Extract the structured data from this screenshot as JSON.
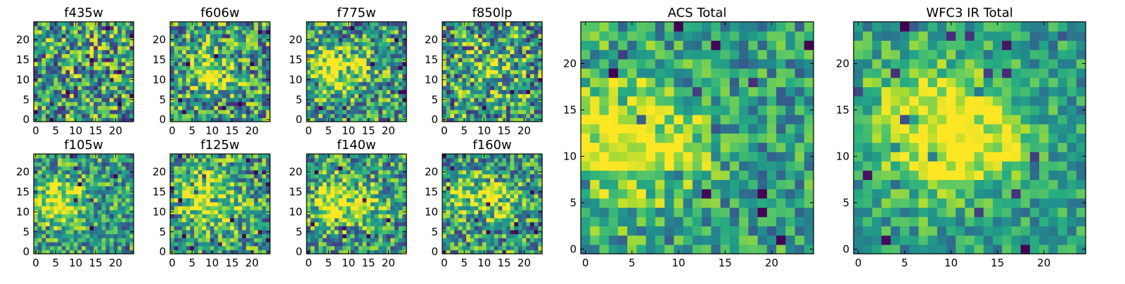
{
  "figure": {
    "colormap": "viridis",
    "colormap_stops": [
      "#440154",
      "#472d7b",
      "#3b528b",
      "#2c728e",
      "#21918c",
      "#28ae80",
      "#5ec962",
      "#addc30",
      "#fde725"
    ]
  },
  "chart_data": [
    {
      "type": "heatmap",
      "title": "f435w",
      "grid_size": [
        25,
        25
      ],
      "x_ticks": [
        0,
        5,
        10,
        15,
        20
      ],
      "y_ticks": [
        0,
        5,
        10,
        15,
        20
      ],
      "xlim": [
        -0.5,
        24.5
      ],
      "ylim": [
        -0.5,
        24.5
      ],
      "values": "25x25 pixel intensities (noisy; no prominent source)"
    },
    {
      "type": "heatmap",
      "title": "f606w",
      "grid_size": [
        25,
        25
      ],
      "x_ticks": [
        0,
        5,
        10,
        15,
        20
      ],
      "y_ticks": [
        0,
        5,
        10,
        15,
        20
      ],
      "xlim": [
        -0.5,
        24.5
      ],
      "ylim": [
        -0.5,
        24.5
      ],
      "values": "25x25 pixel intensities (faint source near x≈9, y≈12)"
    },
    {
      "type": "heatmap",
      "title": "f775w",
      "grid_size": [
        25,
        25
      ],
      "x_ticks": [
        0,
        5,
        10,
        15,
        20
      ],
      "y_ticks": [
        0,
        5,
        10,
        15,
        20
      ],
      "xlim": [
        -0.5,
        24.5
      ],
      "ylim": [
        -0.5,
        24.5
      ],
      "values": "25x25 pixel intensities (source near x≈5, y≈12)"
    },
    {
      "type": "heatmap",
      "title": "f850lp",
      "grid_size": [
        25,
        25
      ],
      "x_ticks": [
        0,
        5,
        10,
        15,
        20
      ],
      "y_ticks": [
        0,
        5,
        10,
        15,
        20
      ],
      "xlim": [
        -0.5,
        24.5
      ],
      "ylim": [
        -0.5,
        24.5
      ],
      "values": "25x25 pixel intensities (noisy)"
    },
    {
      "type": "heatmap",
      "title": "f105w",
      "grid_size": [
        25,
        25
      ],
      "x_ticks": [
        0,
        5,
        10,
        15,
        20
      ],
      "y_ticks": [
        0,
        5,
        10,
        15,
        20
      ],
      "xlim": [
        -0.5,
        24.5
      ],
      "ylim": [
        -0.5,
        24.5
      ],
      "values": "25x25 pixel intensities (source near x≈6, y≈12)"
    },
    {
      "type": "heatmap",
      "title": "f125w",
      "grid_size": [
        25,
        25
      ],
      "x_ticks": [
        0,
        5,
        10,
        15,
        20
      ],
      "y_ticks": [
        0,
        5,
        10,
        15,
        20
      ],
      "xlim": [
        -0.5,
        24.5
      ],
      "ylim": [
        -0.5,
        24.5
      ],
      "values": "25x25 pixel intensities (source near x≈9, y≈13)"
    },
    {
      "type": "heatmap",
      "title": "f140w",
      "grid_size": [
        25,
        25
      ],
      "x_ticks": [
        0,
        5,
        10,
        15,
        20
      ],
      "y_ticks": [
        0,
        5,
        10,
        15,
        20
      ],
      "xlim": [
        -0.5,
        24.5
      ],
      "ylim": [
        -0.5,
        24.5
      ],
      "values": "25x25 pixel intensities (source near x≈7, y≈13)"
    },
    {
      "type": "heatmap",
      "title": "f160w",
      "grid_size": [
        25,
        25
      ],
      "x_ticks": [
        0,
        5,
        10,
        15,
        20
      ],
      "y_ticks": [
        0,
        5,
        10,
        15,
        20
      ],
      "xlim": [
        -0.5,
        24.5
      ],
      "ylim": [
        -0.5,
        24.5
      ],
      "values": "25x25 pixel intensities (sources near x≈5, y≈14 and x≈14, y≈13)"
    },
    {
      "type": "heatmap",
      "title": "ACS Total",
      "grid_size": [
        25,
        25
      ],
      "x_ticks": [
        0,
        5,
        10,
        15,
        20
      ],
      "y_ticks": [
        0,
        5,
        10,
        15,
        20
      ],
      "xlim": [
        -0.5,
        24.5
      ],
      "ylim": [
        -0.5,
        24.5
      ],
      "values": "25x25 pixel intensities (bright region x≈0–10, y≈10–16)"
    },
    {
      "type": "heatmap",
      "title": "WFC3 IR Total",
      "grid_size": [
        25,
        25
      ],
      "x_ticks": [
        0,
        5,
        10,
        15,
        20
      ],
      "y_ticks": [
        0,
        5,
        10,
        15,
        20
      ],
      "xlim": [
        -0.5,
        24.5
      ],
      "ylim": [
        -0.5,
        24.5
      ],
      "values": "25x25 pixel intensities (bright region x≈3–15, y≈11–15)"
    }
  ]
}
